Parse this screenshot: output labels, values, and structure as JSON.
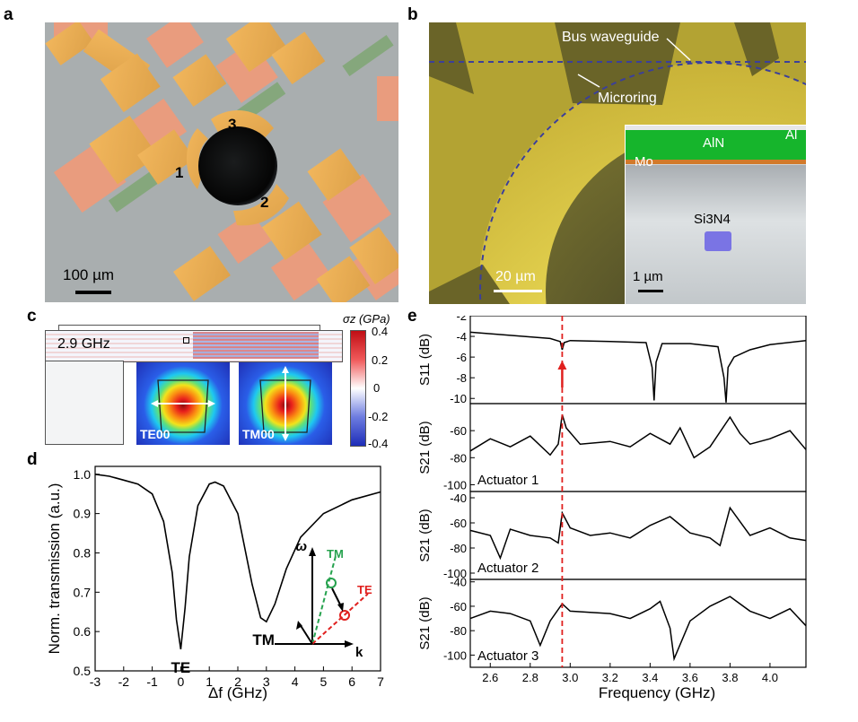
{
  "panel_labels": {
    "a": "a",
    "b": "b",
    "c": "c",
    "d": "d",
    "e": "e"
  },
  "panel_a": {
    "actuator_labels": [
      "1",
      "2",
      "3"
    ],
    "scale_bar": "100 µm"
  },
  "panel_b": {
    "bus_waveguide_label": "Bus waveguide",
    "microring_label": "Microring",
    "scale_bar": "20 µm",
    "inset": {
      "top_layer": "AlN",
      "electrode_top": "Al",
      "electrode_bottom": "Mo",
      "core": "Si3N4",
      "scale_bar": "1 µm"
    }
  },
  "panel_c": {
    "frequency": "2.9 GHz",
    "mode_labels": [
      "TE00",
      "TM00"
    ],
    "colorbar": {
      "title": "σz (GPa)",
      "ticks": [
        "0.4",
        "0.2",
        "0",
        "-0.2",
        "-0.4"
      ]
    }
  },
  "chart_data": [
    {
      "id": "d",
      "type": "line",
      "xlabel": "Δf (GHz)",
      "ylabel": "Norm. transmission (a.u.)",
      "xlim": [
        -3,
        7
      ],
      "ylim": [
        0.5,
        1.02
      ],
      "x_ticks": [
        "-3",
        "-2",
        "-1",
        "0",
        "1",
        "2",
        "3",
        "4",
        "5",
        "6",
        "7"
      ],
      "y_ticks": [
        "1.0",
        "0.9",
        "0.8",
        "0.7",
        "0.6",
        "0.5"
      ],
      "annotations": [
        "TE",
        "TM"
      ],
      "dispersion_inset": {
        "axis_y": "ω",
        "axis_x": "k",
        "lines": [
          "TM",
          "TE"
        ]
      },
      "series": [
        {
          "name": "transmission",
          "x": [
            -3,
            -2.5,
            -2,
            -1.5,
            -1,
            -0.6,
            -0.3,
            -0.15,
            0,
            0.15,
            0.3,
            0.6,
            1,
            1.2,
            1.5,
            2,
            2.5,
            2.8,
            3,
            3.3,
            3.7,
            4.2,
            5,
            6,
            7
          ],
          "y": [
            1.0,
            0.995,
            0.985,
            0.975,
            0.95,
            0.88,
            0.75,
            0.63,
            0.555,
            0.66,
            0.79,
            0.92,
            0.975,
            0.98,
            0.97,
            0.9,
            0.72,
            0.635,
            0.625,
            0.67,
            0.76,
            0.84,
            0.9,
            0.935,
            0.955
          ]
        }
      ]
    },
    {
      "id": "e",
      "type": "line",
      "xlabel": "Frequency (GHz)",
      "x_ticks": [
        "2.6",
        "2.8",
        "3.0",
        "3.2",
        "3.4",
        "3.6",
        "3.8",
        "4.0"
      ],
      "xlim": [
        2.5,
        4.18
      ],
      "marker_frequency": 2.96,
      "subplots": [
        {
          "ylabel": "S11 (dB)",
          "ylim": [
            -10.5,
            -2
          ],
          "y_ticks": [
            "-2",
            "-4",
            "-6",
            "-8",
            "-10"
          ],
          "label": "",
          "series": [
            {
              "name": "S11",
              "x": [
                2.5,
                2.7,
                2.9,
                2.95,
                2.96,
                2.97,
                3.0,
                3.2,
                3.38,
                3.41,
                3.42,
                3.43,
                3.46,
                3.6,
                3.74,
                3.77,
                3.78,
                3.79,
                3.82,
                3.9,
                4.0,
                4.18
              ],
              "y": [
                -3.6,
                -3.9,
                -4.2,
                -4.5,
                -5.3,
                -4.6,
                -4.4,
                -4.5,
                -4.6,
                -7.0,
                -10.2,
                -6.5,
                -4.7,
                -4.7,
                -5.0,
                -8.0,
                -10.4,
                -7.0,
                -6.0,
                -5.3,
                -4.8,
                -4.4
              ]
            }
          ]
        },
        {
          "ylabel": "S21 (dB)",
          "ylim": [
            -105,
            -40
          ],
          "y_ticks": [
            "-60",
            "-80",
            "-100"
          ],
          "label": "Actuator 1",
          "series": [
            {
              "name": "S21 actuator 1",
              "x": [
                2.5,
                2.6,
                2.7,
                2.8,
                2.9,
                2.94,
                2.96,
                2.98,
                3.05,
                3.2,
                3.3,
                3.4,
                3.5,
                3.55,
                3.62,
                3.7,
                3.8,
                3.85,
                3.9,
                4.0,
                4.1,
                4.18
              ],
              "y": [
                -75,
                -66,
                -72,
                -64,
                -78,
                -70,
                -48,
                -58,
                -70,
                -68,
                -72,
                -62,
                -70,
                -58,
                -80,
                -72,
                -50,
                -62,
                -70,
                -66,
                -60,
                -74
              ]
            }
          ]
        },
        {
          "ylabel": "S21 (dB)",
          "ylim": [
            -105,
            -35
          ],
          "y_ticks": [
            "-40",
            "-60",
            "-80",
            "-100"
          ],
          "label": "Actuator 2",
          "series": [
            {
              "name": "S21 actuator 2",
              "x": [
                2.5,
                2.6,
                2.65,
                2.7,
                2.8,
                2.9,
                2.94,
                2.96,
                3.0,
                3.1,
                3.2,
                3.3,
                3.4,
                3.5,
                3.6,
                3.7,
                3.75,
                3.8,
                3.9,
                4.0,
                4.1,
                4.18
              ],
              "y": [
                -66,
                -70,
                -88,
                -65,
                -70,
                -72,
                -76,
                -52,
                -64,
                -70,
                -68,
                -72,
                -62,
                -55,
                -68,
                -72,
                -78,
                -48,
                -70,
                -64,
                -72,
                -74
              ]
            }
          ]
        },
        {
          "ylabel": "S21 (dB)",
          "ylim": [
            -110,
            -38
          ],
          "y_ticks": [
            "-40",
            "-60",
            "-80",
            "-100"
          ],
          "label": "Actuator 3",
          "series": [
            {
              "name": "S21 actuator 3",
              "x": [
                2.5,
                2.6,
                2.7,
                2.8,
                2.85,
                2.9,
                2.96,
                3.0,
                3.2,
                3.3,
                3.4,
                3.45,
                3.5,
                3.52,
                3.6,
                3.7,
                3.8,
                3.9,
                4.0,
                4.1,
                4.18
              ],
              "y": [
                -70,
                -64,
                -66,
                -72,
                -92,
                -72,
                -58,
                -64,
                -66,
                -70,
                -62,
                -56,
                -78,
                -103,
                -72,
                -60,
                -52,
                -64,
                -70,
                -62,
                -76
              ]
            }
          ]
        }
      ]
    }
  ]
}
